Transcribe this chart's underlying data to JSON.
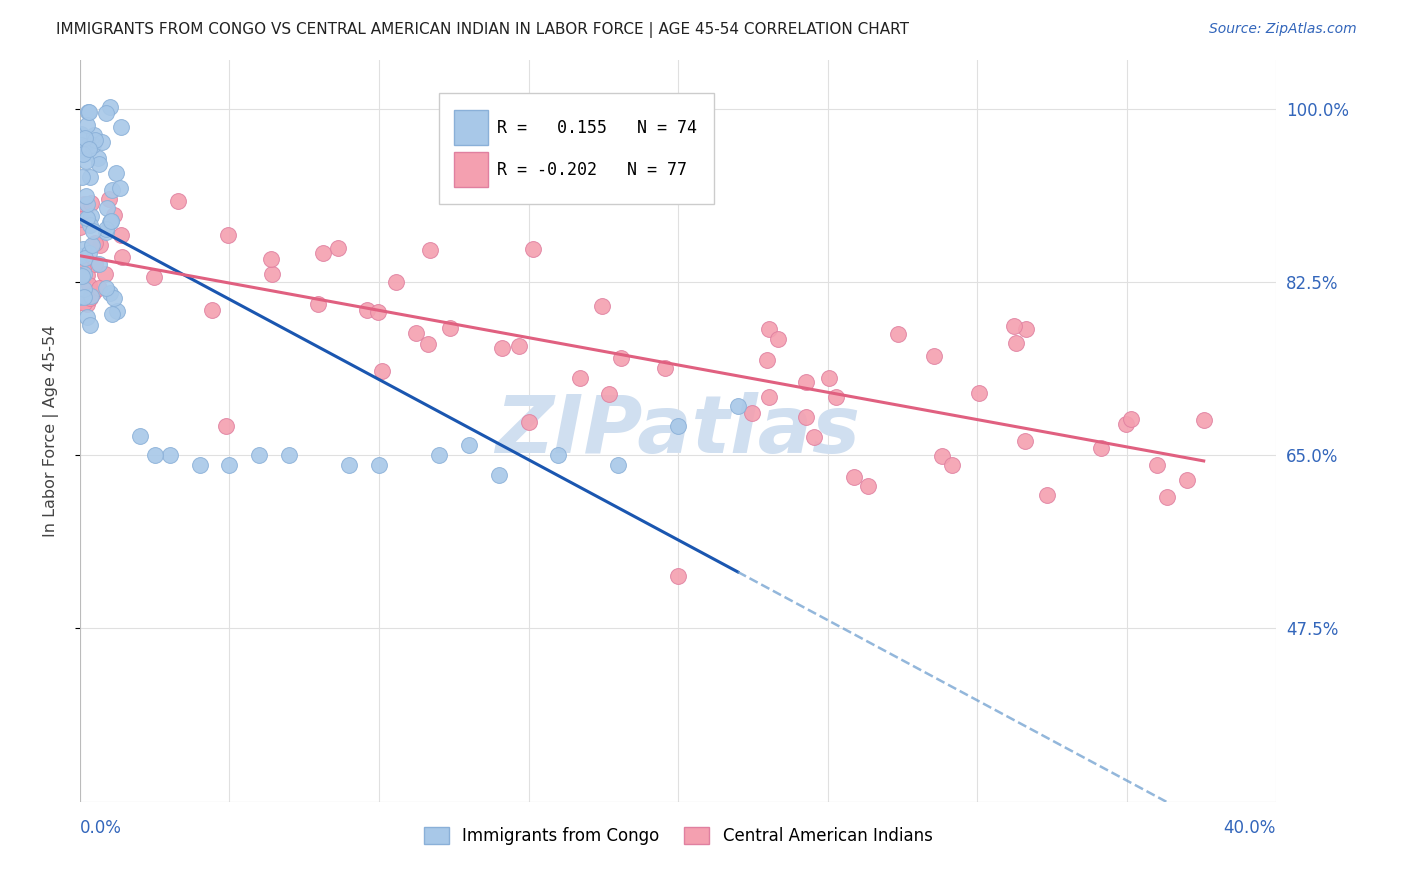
{
  "title": "IMMIGRANTS FROM CONGO VS CENTRAL AMERICAN INDIAN IN LABOR FORCE | AGE 45-54 CORRELATION CHART",
  "source": "Source: ZipAtlas.com",
  "ylabel": "In Labor Force | Age 45-54",
  "legend1_label": "Immigrants from Congo",
  "legend2_label": "Central American Indians",
  "R_congo": 0.155,
  "N_congo": 74,
  "R_central": -0.202,
  "N_central": 77,
  "congo_color": "#a8c8e8",
  "central_color": "#f4a0b0",
  "congo_edge": "#8ab0d8",
  "central_edge": "#e080a0",
  "trend_congo_color": "#1a56b0",
  "trend_central_color": "#e06080",
  "watermark_color": "#d0dff0",
  "background_color": "#ffffff",
  "grid_color": "#e0e0e0",
  "xmin": 0.0,
  "xmax": 0.4,
  "ymin": 0.3,
  "ymax": 1.05,
  "y_tick_vals": [
    1.0,
    0.825,
    0.65,
    0.475
  ],
  "y_tick_labels": [
    "100.0%",
    "82.5%",
    "65.0%",
    "47.5%"
  ]
}
